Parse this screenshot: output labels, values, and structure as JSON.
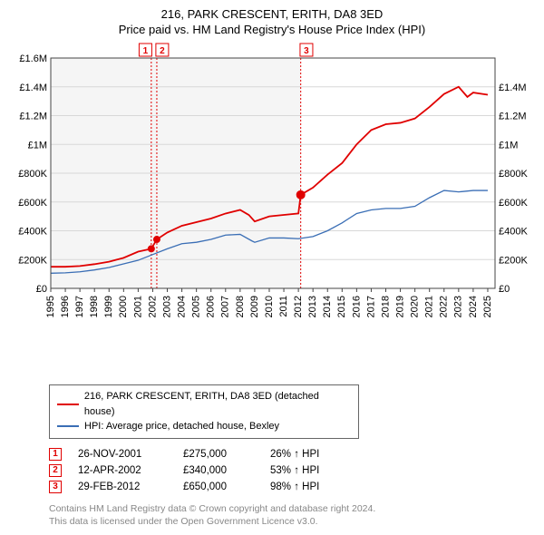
{
  "title": "216, PARK CRESCENT, ERITH, DA8 3ED",
  "subtitle": "Price paid vs. HM Land Registry's House Price Index (HPI)",
  "chart": {
    "type": "line",
    "background_color": "#ffffff",
    "plot_bg_left": "#f5f5f5",
    "plot_bg_right": "#ffffff",
    "plot_split_year": 2012.16,
    "grid_color": "#d8d8d8",
    "axis_color": "#444444",
    "x_years": [
      1995,
      1996,
      1997,
      1998,
      1999,
      2000,
      2001,
      2002,
      2003,
      2004,
      2005,
      2006,
      2007,
      2008,
      2009,
      2010,
      2011,
      2012,
      2013,
      2014,
      2015,
      2016,
      2017,
      2018,
      2019,
      2020,
      2021,
      2022,
      2023,
      2024,
      2025
    ],
    "xlim": [
      1995,
      2025.5
    ],
    "y_left": {
      "ticks": [
        0,
        200000,
        400000,
        600000,
        800000,
        1000000,
        1200000,
        1400000,
        1600000
      ],
      "labels": [
        "£0",
        "£200K",
        "£400K",
        "£600K",
        "£800K",
        "£1M",
        "£1.2M",
        "£1.4M",
        "£1.6M"
      ],
      "lim": [
        0,
        1600000
      ],
      "label_fontsize": 11
    },
    "y_right": {
      "ticks": [
        0,
        200000,
        400000,
        600000,
        800000,
        1000000,
        1200000,
        1400000
      ],
      "labels": [
        "£0",
        "£200K",
        "£400K",
        "£600K",
        "£800K",
        "£1M",
        "£1.2M",
        "£1.4M"
      ],
      "lim": [
        0,
        1600000
      ],
      "label_fontsize": 11
    },
    "tick_fontsize": 11,
    "vlines": [
      {
        "x": 2001.9,
        "color": "#e00000",
        "dash": "2,2"
      },
      {
        "x": 2002.28,
        "color": "#e00000",
        "dash": "2,2"
      },
      {
        "x": 2012.16,
        "color": "#e00000",
        "dash": "2,2"
      }
    ],
    "vline_markers": [
      {
        "x": 2001.5,
        "label": "1"
      },
      {
        "x": 2002.65,
        "label": "2"
      },
      {
        "x": 2012.55,
        "label": "3"
      }
    ],
    "series": [
      {
        "name": "price_paid",
        "color": "#e00000",
        "width": 1.8,
        "points": [
          [
            1995,
            150000
          ],
          [
            1996,
            150000
          ],
          [
            1997,
            155000
          ],
          [
            1998,
            168000
          ],
          [
            1999,
            185000
          ],
          [
            2000,
            212000
          ],
          [
            2001,
            255000
          ],
          [
            2001.9,
            275000
          ],
          [
            2002.28,
            340000
          ],
          [
            2003,
            388000
          ],
          [
            2004,
            435000
          ],
          [
            2005,
            460000
          ],
          [
            2006,
            485000
          ],
          [
            2007,
            520000
          ],
          [
            2008,
            545000
          ],
          [
            2008.6,
            510000
          ],
          [
            2009,
            465000
          ],
          [
            2010,
            500000
          ],
          [
            2011,
            510000
          ],
          [
            2012,
            520000
          ],
          [
            2012.16,
            650000
          ],
          [
            2013,
            700000
          ],
          [
            2014,
            790000
          ],
          [
            2015,
            870000
          ],
          [
            2016,
            1000000
          ],
          [
            2017,
            1100000
          ],
          [
            2018,
            1140000
          ],
          [
            2019,
            1150000
          ],
          [
            2020,
            1180000
          ],
          [
            2021,
            1260000
          ],
          [
            2022,
            1350000
          ],
          [
            2023,
            1400000
          ],
          [
            2023.6,
            1330000
          ],
          [
            2024,
            1360000
          ],
          [
            2025,
            1345000
          ]
        ]
      },
      {
        "name": "hpi",
        "color": "#3a6eb5",
        "width": 1.3,
        "points": [
          [
            1995,
            105000
          ],
          [
            1996,
            108000
          ],
          [
            1997,
            115000
          ],
          [
            1998,
            128000
          ],
          [
            1999,
            145000
          ],
          [
            2000,
            170000
          ],
          [
            2001,
            195000
          ],
          [
            2002,
            235000
          ],
          [
            2003,
            275000
          ],
          [
            2004,
            310000
          ],
          [
            2005,
            320000
          ],
          [
            2006,
            340000
          ],
          [
            2007,
            370000
          ],
          [
            2008,
            375000
          ],
          [
            2008.8,
            330000
          ],
          [
            2009,
            320000
          ],
          [
            2010,
            350000
          ],
          [
            2011,
            350000
          ],
          [
            2012,
            345000
          ],
          [
            2013,
            360000
          ],
          [
            2014,
            400000
          ],
          [
            2015,
            455000
          ],
          [
            2016,
            520000
          ],
          [
            2017,
            545000
          ],
          [
            2018,
            555000
          ],
          [
            2019,
            555000
          ],
          [
            2020,
            570000
          ],
          [
            2021,
            630000
          ],
          [
            2022,
            680000
          ],
          [
            2023,
            670000
          ],
          [
            2024,
            680000
          ],
          [
            2025,
            680000
          ]
        ]
      }
    ],
    "sale_points": [
      {
        "x": 2001.9,
        "y": 275000,
        "color": "#e00000",
        "r": 4
      },
      {
        "x": 2002.28,
        "y": 340000,
        "color": "#e00000",
        "r": 4
      },
      {
        "x": 2012.16,
        "y": 650000,
        "color": "#e00000",
        "r": 5
      }
    ]
  },
  "legend": {
    "items": [
      {
        "color": "#e00000",
        "label": "216, PARK CRESCENT, ERITH, DA8 3ED (detached house)"
      },
      {
        "color": "#3a6eb5",
        "label": "HPI: Average price, detached house, Bexley"
      }
    ]
  },
  "events": [
    {
      "n": "1",
      "date": "26-NOV-2001",
      "price": "£275,000",
      "delta": "26% ↑ HPI"
    },
    {
      "n": "2",
      "date": "12-APR-2002",
      "price": "£340,000",
      "delta": "53% ↑ HPI"
    },
    {
      "n": "3",
      "date": "29-FEB-2012",
      "price": "£650,000",
      "delta": "98% ↑ HPI"
    }
  ],
  "footer": {
    "line1": "Contains HM Land Registry data © Crown copyright and database right 2024.",
    "line2": "This data is licensed under the Open Government Licence v3.0."
  }
}
